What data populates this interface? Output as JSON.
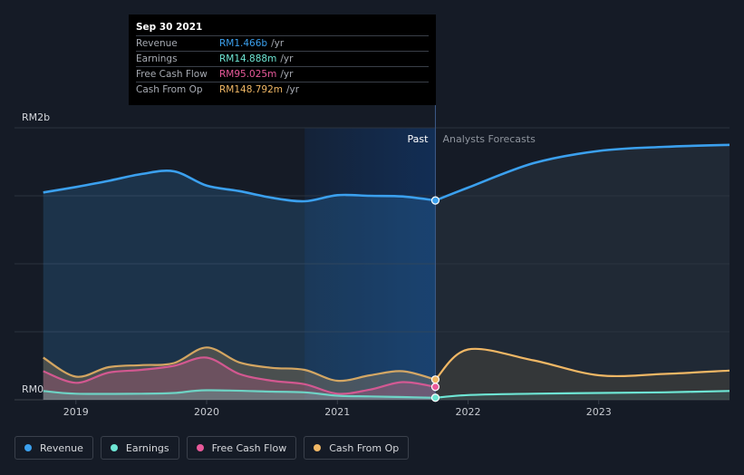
{
  "tooltip": {
    "date": "Sep 30 2021",
    "rows": [
      {
        "label": "Revenue",
        "value": "RM1.466b",
        "unit": "/yr",
        "color": "#3ba0ee"
      },
      {
        "label": "Earnings",
        "value": "RM14.888m",
        "unit": "/yr",
        "color": "#6ee6d4"
      },
      {
        "label": "Free Cash Flow",
        "value": "RM95.025m",
        "unit": "/yr",
        "color": "#e8599a"
      },
      {
        "label": "Cash From Op",
        "value": "RM148.792m",
        "unit": "/yr",
        "color": "#f0b765"
      }
    ]
  },
  "legend": [
    {
      "label": "Revenue",
      "color": "#3ba0ee"
    },
    {
      "label": "Earnings",
      "color": "#6ee6d4"
    },
    {
      "label": "Free Cash Flow",
      "color": "#e8599a"
    },
    {
      "label": "Cash From Op",
      "color": "#f0b765"
    }
  ],
  "chart_data": {
    "type": "area",
    "ylabel_top": "RM2b",
    "ylabel_bottom": "RM0",
    "ylim": [
      0,
      2000
    ],
    "unit": "RM m",
    "x_ticks": [
      "2019",
      "2020",
      "2021",
      "2022",
      "2023"
    ],
    "x_tick_values": [
      2019,
      2020,
      2021,
      2022,
      2023
    ],
    "xlim": [
      2018.53,
      2024.0
    ],
    "past_label": "Past",
    "forecast_label": "Analysts Forecasts",
    "past_end": 2021.75,
    "highlight_start": 2020.75,
    "grid": true,
    "series": [
      {
        "name": "Revenue",
        "color": "#3ba0ee",
        "past": [
          [
            2018.75,
            1525
          ],
          [
            2019.0,
            1565
          ],
          [
            2019.25,
            1610
          ],
          [
            2019.5,
            1660
          ],
          [
            2019.75,
            1680
          ],
          [
            2020.0,
            1575
          ],
          [
            2020.25,
            1535
          ],
          [
            2020.5,
            1485
          ],
          [
            2020.75,
            1460
          ],
          [
            2021.0,
            1505
          ],
          [
            2021.25,
            1500
          ],
          [
            2021.5,
            1495
          ],
          [
            2021.75,
            1466
          ]
        ],
        "forecast": [
          [
            2021.75,
            1466
          ],
          [
            2022.0,
            1560
          ],
          [
            2022.5,
            1740
          ],
          [
            2023.0,
            1830
          ],
          [
            2023.5,
            1860
          ],
          [
            2024.0,
            1875
          ]
        ]
      },
      {
        "name": "Earnings",
        "color": "#6ee6d4",
        "past": [
          [
            2018.75,
            65
          ],
          [
            2019.0,
            45
          ],
          [
            2019.5,
            45
          ],
          [
            2019.75,
            50
          ],
          [
            2020.0,
            70
          ],
          [
            2020.5,
            60
          ],
          [
            2020.75,
            55
          ],
          [
            2021.0,
            30
          ],
          [
            2021.25,
            25
          ],
          [
            2021.5,
            20
          ],
          [
            2021.75,
            14.888
          ]
        ],
        "forecast": [
          [
            2021.75,
            14.888
          ],
          [
            2022.0,
            35
          ],
          [
            2022.5,
            45
          ],
          [
            2023.0,
            50
          ],
          [
            2023.5,
            55
          ],
          [
            2024.0,
            65
          ]
        ]
      },
      {
        "name": "Free Cash Flow",
        "color": "#e8599a",
        "past": [
          [
            2018.75,
            210
          ],
          [
            2019.0,
            125
          ],
          [
            2019.25,
            200
          ],
          [
            2019.5,
            220
          ],
          [
            2019.75,
            250
          ],
          [
            2020.0,
            310
          ],
          [
            2020.25,
            190
          ],
          [
            2020.5,
            140
          ],
          [
            2020.75,
            115
          ],
          [
            2021.0,
            45
          ],
          [
            2021.25,
            75
          ],
          [
            2021.5,
            130
          ],
          [
            2021.75,
            95
          ]
        ]
      },
      {
        "name": "Cash From Op",
        "color": "#f0b765",
        "past": [
          [
            2018.75,
            310
          ],
          [
            2019.0,
            170
          ],
          [
            2019.25,
            240
          ],
          [
            2019.5,
            255
          ],
          [
            2019.75,
            270
          ],
          [
            2020.0,
            385
          ],
          [
            2020.25,
            275
          ],
          [
            2020.5,
            235
          ],
          [
            2020.75,
            220
          ],
          [
            2021.0,
            140
          ],
          [
            2021.25,
            180
          ],
          [
            2021.5,
            210
          ],
          [
            2021.75,
            148.792
          ]
        ],
        "forecast": [
          [
            2021.75,
            148.792
          ],
          [
            2022.0,
            370
          ],
          [
            2022.5,
            290
          ],
          [
            2023.0,
            180
          ],
          [
            2023.5,
            190
          ],
          [
            2024.0,
            215
          ]
        ]
      }
    ]
  }
}
